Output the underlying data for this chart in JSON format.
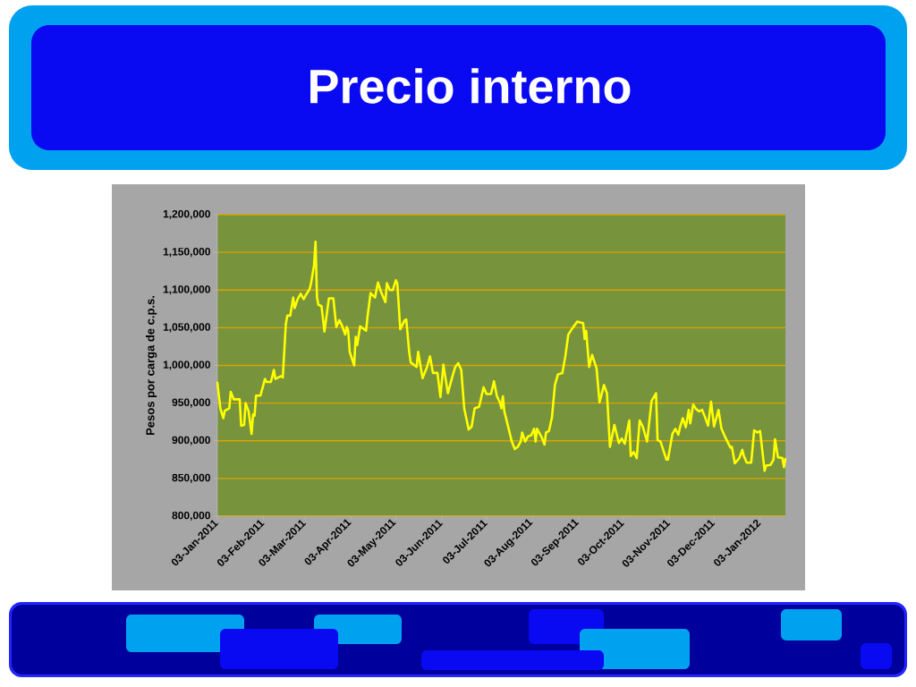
{
  "chart_data": {
    "type": "line",
    "title": "Precio interno",
    "ylabel": "Pesos por carga de c.p.s.",
    "x": [
      "2011-01-03",
      "2011-01-05",
      "2011-01-07",
      "2011-01-08",
      "2011-01-11",
      "2011-01-12",
      "2011-01-14",
      "2011-01-18",
      "2011-01-19",
      "2011-01-21",
      "2011-01-22",
      "2011-01-24",
      "2011-01-26",
      "2011-01-27",
      "2011-01-28",
      "2011-01-29",
      "2011-02-01",
      "2011-02-04",
      "2011-02-05",
      "2011-02-08",
      "2011-02-10",
      "2011-02-11",
      "2011-02-13",
      "2011-02-15",
      "2011-02-16",
      "2011-02-18",
      "2011-02-19",
      "2011-02-21",
      "2011-02-23",
      "2011-02-24",
      "2011-02-26",
      "2011-02-28",
      "2011-03-02",
      "2011-03-04",
      "2011-03-06",
      "2011-03-07",
      "2011-03-09",
      "2011-03-10",
      "2011-03-11",
      "2011-03-12",
      "2011-03-14",
      "2011-03-16",
      "2011-03-19",
      "2011-03-22",
      "2011-03-24",
      "2011-03-26",
      "2011-03-28",
      "2011-03-30",
      "2011-03-31",
      "2011-04-01",
      "2011-04-02",
      "2011-04-05",
      "2011-04-06",
      "2011-04-07",
      "2011-04-09",
      "2011-04-11",
      "2011-04-13",
      "2011-04-14",
      "2011-04-16",
      "2011-04-19",
      "2011-04-21",
      "2011-04-23",
      "2011-04-26",
      "2011-04-27",
      "2011-04-29",
      "2011-05-01",
      "2011-05-03",
      "2011-05-04",
      "2011-05-06",
      "2011-05-09",
      "2011-05-10",
      "2011-05-12",
      "2011-05-13",
      "2011-05-17",
      "2011-05-18",
      "2011-05-21",
      "2011-05-24",
      "2011-05-26",
      "2011-05-28",
      "2011-05-31",
      "2011-06-02",
      "2011-06-04",
      "2011-06-07",
      "2011-06-10",
      "2011-06-12",
      "2011-06-14",
      "2011-06-16",
      "2011-06-18",
      "2011-06-21",
      "2011-06-23",
      "2011-06-25",
      "2011-06-28",
      "2011-07-01",
      "2011-07-03",
      "2011-07-06",
      "2011-07-08",
      "2011-07-10",
      "2011-07-12",
      "2011-07-13",
      "2011-07-14",
      "2011-07-15",
      "2011-07-18",
      "2011-07-20",
      "2011-07-22",
      "2011-07-24",
      "2011-07-26",
      "2011-07-27",
      "2011-07-29",
      "2011-07-31",
      "2011-08-02",
      "2011-08-04",
      "2011-08-05",
      "2011-08-06",
      "2011-08-09",
      "2011-08-11",
      "2011-08-12",
      "2011-08-14",
      "2011-08-16",
      "2011-08-18",
      "2011-08-20",
      "2011-08-23",
      "2011-08-25",
      "2011-08-27",
      "2011-08-30",
      "2011-09-02",
      "2011-09-06",
      "2011-09-07",
      "2011-09-08",
      "2011-09-10",
      "2011-09-12",
      "2011-09-15",
      "2011-09-17",
      "2011-09-20",
      "2011-09-22",
      "2011-09-24",
      "2011-09-27",
      "2011-09-30",
      "2011-10-02",
      "2011-10-04",
      "2011-10-05",
      "2011-10-07",
      "2011-10-08",
      "2011-10-10",
      "2011-10-12",
      "2011-10-14",
      "2011-10-16",
      "2011-10-19",
      "2011-10-20",
      "2011-10-22",
      "2011-10-25",
      "2011-10-26",
      "2011-10-28",
      "2011-11-01",
      "2011-11-02",
      "2011-11-05",
      "2011-11-07",
      "2011-11-09",
      "2011-11-10",
      "2011-11-12",
      "2011-11-14",
      "2011-11-16",
      "2011-11-17",
      "2011-11-19",
      "2011-11-21",
      "2011-11-23",
      "2011-11-25",
      "2011-11-27",
      "2011-11-29",
      "2011-12-01",
      "2011-12-03",
      "2011-12-06",
      "2011-12-08",
      "2011-12-10",
      "2011-12-14",
      "2011-12-15",
      "2011-12-17",
      "2011-12-20",
      "2011-12-22",
      "2011-12-23",
      "2011-12-25",
      "2011-12-28",
      "2011-12-30",
      "2012-01-01",
      "2012-01-03",
      "2012-01-06",
      "2012-01-07",
      "2012-01-10",
      "2012-01-12",
      "2012-01-13",
      "2012-01-15",
      "2012-01-18",
      "2012-01-19",
      "2012-01-20"
    ],
    "series": [
      {
        "color": "#ffff00",
        "values": [
          977000,
          943000,
          930000,
          940000,
          943000,
          965000,
          955000,
          955000,
          920000,
          921000,
          950000,
          939000,
          909000,
          935000,
          933000,
          960000,
          960000,
          982000,
          978000,
          978000,
          994000,
          982000,
          984000,
          986000,
          984000,
          1054000,
          1066000,
          1066000,
          1090000,
          1076000,
          1088000,
          1095000,
          1088000,
          1095000,
          1101000,
          1109000,
          1133000,
          1164000,
          1090000,
          1080000,
          1079000,
          1045000,
          1089000,
          1089000,
          1051000,
          1060000,
          1052000,
          1041000,
          1051000,
          1046000,
          1018000,
          1000000,
          1038000,
          1027000,
          1052000,
          1049000,
          1046000,
          1065000,
          1096000,
          1090000,
          1110000,
          1098000,
          1084000,
          1109000,
          1100000,
          1100000,
          1113000,
          1109000,
          1048000,
          1060000,
          1061000,
          1018000,
          1004000,
          998000,
          1018000,
          983000,
          998000,
          1012000,
          990000,
          990000,
          958000,
          1001000,
          963000,
          985000,
          998000,
          1003000,
          994000,
          943000,
          915000,
          919000,
          943000,
          945000,
          971000,
          962000,
          962000,
          979000,
          959000,
          951000,
          943000,
          959000,
          939000,
          915000,
          899000,
          889000,
          892000,
          899000,
          911000,
          899000,
          906000,
          907000,
          916000,
          899000,
          916000,
          905000,
          895000,
          911000,
          913000,
          931000,
          974000,
          988000,
          990000,
          1012000,
          1041000,
          1050000,
          1058000,
          1056000,
          1035000,
          1046000,
          998000,
          1014000,
          996000,
          951000,
          974000,
          963000,
          892000,
          921000,
          897000,
          903000,
          896000,
          908000,
          927000,
          880000,
          885000,
          877000,
          927000,
          919000,
          899000,
          917000,
          953000,
          963000,
          901000,
          899000,
          875000,
          875000,
          909000,
          916000,
          908000,
          917000,
          930000,
          918000,
          941000,
          923000,
          948000,
          942000,
          939000,
          941000,
          931000,
          920000,
          952000,
          919000,
          941000,
          916000,
          907000,
          891000,
          892000,
          870000,
          877000,
          888000,
          880000,
          871000,
          871000,
          914000,
          911000,
          913000,
          860000,
          867000,
          868000,
          875000,
          902000,
          878000,
          877000,
          865000,
          876000
        ]
      }
    ],
    "xlim": [
      "2011-01-03",
      "2012-01-20"
    ],
    "ylim": [
      800000,
      1200000
    ],
    "xticks": [
      {
        "value": "2011-01-03",
        "label": "03-Jan-2011"
      },
      {
        "value": "2011-02-03",
        "label": "03-Feb-2011"
      },
      {
        "value": "2011-03-03",
        "label": "03-Mar-2011"
      },
      {
        "value": "2011-04-03",
        "label": "03-Apr-2011"
      },
      {
        "value": "2011-05-03",
        "label": "03-May-2011"
      },
      {
        "value": "2011-06-03",
        "label": "03-Jun-2011"
      },
      {
        "value": "2011-07-03",
        "label": "03-Jul-2011"
      },
      {
        "value": "2011-08-03",
        "label": "03-Aug-2011"
      },
      {
        "value": "2011-09-03",
        "label": "03-Sep-2011"
      },
      {
        "value": "2011-10-03",
        "label": "03-Oct-2011"
      },
      {
        "value": "2011-11-03",
        "label": "03-Nov-2011"
      },
      {
        "value": "2011-12-03",
        "label": "03-Dec-2011"
      },
      {
        "value": "2012-01-03",
        "label": "03-Jan-2012"
      }
    ],
    "yticks": [
      {
        "value": 800000,
        "label": "800,000"
      },
      {
        "value": 850000,
        "label": "850,000"
      },
      {
        "value": 900000,
        "label": "900,000"
      },
      {
        "value": 950000,
        "label": "950,000"
      },
      {
        "value": 1000000,
        "label": "1,000,000"
      },
      {
        "value": 1050000,
        "label": "1,050,000"
      },
      {
        "value": 1100000,
        "label": "1,100,000"
      },
      {
        "value": 1150000,
        "label": "1,150,000"
      },
      {
        "value": 1200000,
        "label": "1,200,000"
      }
    ],
    "grid": "y"
  }
}
